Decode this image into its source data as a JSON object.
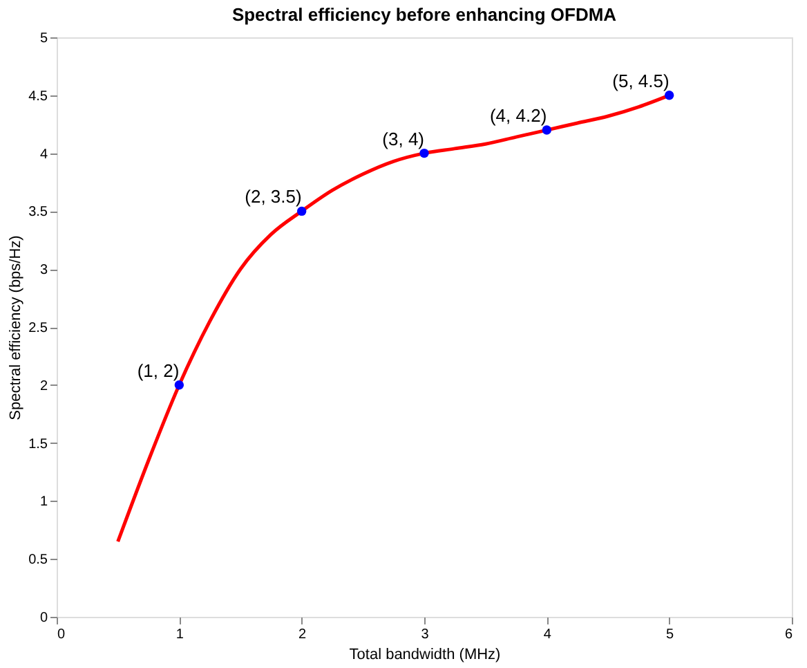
{
  "chart_data": {
    "type": "scatter",
    "title": "Spectral efficiency before enhancing OFDMA",
    "xlabel": "Total bandwidth (MHz)",
    "ylabel": "Spectral efficiency (bps/Hz)",
    "xlim": [
      0,
      6
    ],
    "xticks": [
      0,
      1,
      2,
      3,
      4,
      5,
      6
    ],
    "ylim": [
      0,
      5
    ],
    "yticks": [
      0,
      0.5,
      1,
      1.5,
      2,
      2.5,
      3,
      3.5,
      4,
      4.5,
      5
    ],
    "grid": false,
    "legend": false,
    "series": [
      {
        "type": "line",
        "color": "#ff0000",
        "line_style": "solid",
        "marker": "none",
        "x": [
          0.5,
          0.75,
          1,
          1.25,
          1.5,
          1.75,
          2,
          2.25,
          2.5,
          2.75,
          3,
          3.25,
          3.5,
          3.75,
          4,
          4.25,
          4.5,
          4.75,
          5
        ],
        "values": [
          0.65,
          1.35,
          2,
          2.55,
          3.0,
          3.3,
          3.5,
          3.68,
          3.82,
          3.93,
          4.0,
          4.04,
          4.08,
          4.14,
          4.2,
          4.26,
          4.32,
          4.4,
          4.5
        ]
      },
      {
        "color": "#0000ff",
        "marker": "circle",
        "x": [
          1,
          2,
          3,
          4,
          5
        ],
        "values": [
          2,
          3.5,
          4,
          4.2,
          4.5
        ]
      }
    ],
    "annotations": [
      {
        "text": "(1, 2)",
        "x": 1,
        "y": 2
      },
      {
        "text": "(2, 3.5)",
        "x": 2,
        "y": 3.5
      },
      {
        "text": "(3, 4)",
        "x": 3,
        "y": 4
      },
      {
        "text": "(4, 4.2)",
        "x": 4,
        "y": 4.2
      },
      {
        "text": "(5, 4.5)",
        "x": 5,
        "y": 4.5
      }
    ]
  }
}
